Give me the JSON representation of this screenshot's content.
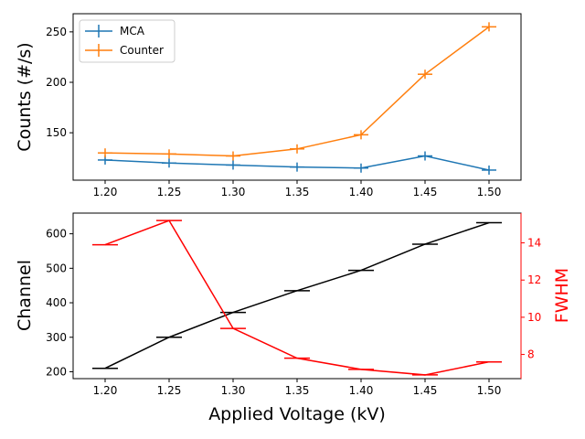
{
  "colors": {
    "mca": "#1f77b4",
    "counter": "#ff7f0e",
    "channel": "#000000",
    "fwhm": "#ff0000"
  },
  "chart_data": [
    {
      "type": "line",
      "x": [
        1.2,
        1.25,
        1.3,
        1.35,
        1.4,
        1.45,
        1.5
      ],
      "xlim": [
        1.175,
        1.525
      ],
      "x_ticks": [
        "1.20",
        "1.25",
        "1.30",
        "1.35",
        "1.40",
        "1.45",
        "1.50"
      ],
      "ylabel": "Counts (#/s)",
      "ylim": [
        103,
        268
      ],
      "y_ticks": [
        "150",
        "200",
        "250"
      ],
      "legend": "top-left",
      "grid": false,
      "series": [
        {
          "name": "MCA",
          "values": [
            123,
            120,
            118,
            116,
            115,
            127,
            113
          ]
        },
        {
          "name": "Counter",
          "values": [
            130,
            129,
            127,
            134,
            148,
            208,
            255
          ]
        }
      ]
    },
    {
      "type": "line",
      "x": [
        1.2,
        1.25,
        1.3,
        1.35,
        1.4,
        1.45,
        1.5
      ],
      "xlim": [
        1.175,
        1.525
      ],
      "x_ticks": [
        "1.20",
        "1.25",
        "1.30",
        "1.35",
        "1.40",
        "1.45",
        "1.50"
      ],
      "xlabel": "Applied Voltage (kV)",
      "ylabel": "Channel",
      "ylim": [
        180,
        660
      ],
      "y_ticks": [
        "200",
        "300",
        "400",
        "500",
        "600"
      ],
      "y2label": "FWHM",
      "y2lim": [
        6.7,
        15.6
      ],
      "y2_ticks": [
        "8",
        "10",
        "12",
        "14"
      ],
      "grid": false,
      "series": [
        {
          "axis": "left",
          "values": [
            210,
            300,
            372,
            435,
            494,
            570,
            632
          ]
        },
        {
          "axis": "right",
          "values": [
            13.9,
            15.2,
            9.4,
            7.8,
            7.2,
            6.9,
            7.6
          ]
        }
      ]
    }
  ]
}
